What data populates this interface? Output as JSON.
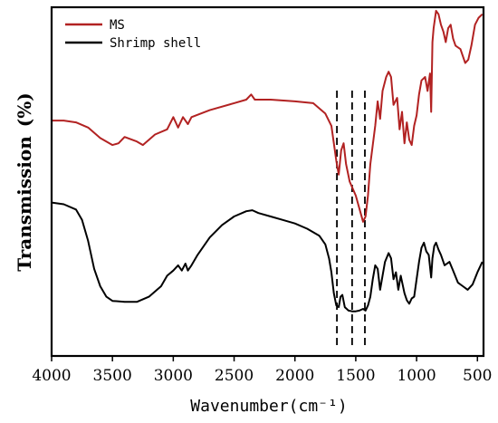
{
  "chart_data": {
    "type": "line",
    "title": "",
    "xlabel": "Wavenumber(cm⁻¹)",
    "ylabel": "Transmission (%)",
    "xlim": [
      4000,
      450
    ],
    "x_reversed": true,
    "xticks": [
      4000,
      3500,
      3000,
      2500,
      2000,
      1500,
      1000,
      500
    ],
    "y_ticks_shown": false,
    "grid": false,
    "legend_position": "top-left",
    "reference_lines_x": [
      1655,
      1530,
      1425
    ],
    "series": [
      {
        "name": "MS",
        "color": "#b22222",
        "points": [
          [
            4000,
            67.5
          ],
          [
            3900,
            67.5
          ],
          [
            3800,
            67.0
          ],
          [
            3700,
            65.5
          ],
          [
            3600,
            62.5
          ],
          [
            3500,
            60.5
          ],
          [
            3450,
            61.0
          ],
          [
            3400,
            62.8
          ],
          [
            3300,
            61.5
          ],
          [
            3250,
            60.5
          ],
          [
            3150,
            63.5
          ],
          [
            3050,
            65.0
          ],
          [
            3000,
            68.5
          ],
          [
            2960,
            65.5
          ],
          [
            2920,
            68.5
          ],
          [
            2880,
            66.5
          ],
          [
            2850,
            68.5
          ],
          [
            2700,
            70.5
          ],
          [
            2500,
            72.5
          ],
          [
            2400,
            73.5
          ],
          [
            2360,
            75.0
          ],
          [
            2330,
            73.5
          ],
          [
            2200,
            73.5
          ],
          [
            2000,
            73.0
          ],
          [
            1850,
            72.5
          ],
          [
            1750,
            69.5
          ],
          [
            1700,
            66.0
          ],
          [
            1660,
            56.0
          ],
          [
            1640,
            52.0
          ],
          [
            1620,
            59.0
          ],
          [
            1600,
            61.0
          ],
          [
            1580,
            55.0
          ],
          [
            1550,
            50.0
          ],
          [
            1500,
            46.0
          ],
          [
            1460,
            41.0
          ],
          [
            1440,
            38.5
          ],
          [
            1420,
            40.0
          ],
          [
            1400,
            46.0
          ],
          [
            1380,
            55.0
          ],
          [
            1340,
            66.0
          ],
          [
            1320,
            73.0
          ],
          [
            1300,
            68.0
          ],
          [
            1280,
            76.0
          ],
          [
            1250,
            80.0
          ],
          [
            1230,
            81.5
          ],
          [
            1210,
            80.0
          ],
          [
            1190,
            72.0
          ],
          [
            1160,
            74.0
          ],
          [
            1140,
            65.0
          ],
          [
            1120,
            70.0
          ],
          [
            1100,
            61.0
          ],
          [
            1080,
            67.0
          ],
          [
            1060,
            62.0
          ],
          [
            1040,
            60.5
          ],
          [
            1020,
            66.0
          ],
          [
            1000,
            69.0
          ],
          [
            980,
            75.0
          ],
          [
            960,
            79.0
          ],
          [
            930,
            80.0
          ],
          [
            910,
            76.0
          ],
          [
            890,
            81.0
          ],
          [
            880,
            70.0
          ],
          [
            870,
            90.0
          ],
          [
            860,
            94.0
          ],
          [
            840,
            99.0
          ],
          [
            820,
            98.0
          ],
          [
            800,
            95.0
          ],
          [
            780,
            93.0
          ],
          [
            760,
            90.0
          ],
          [
            740,
            94.0
          ],
          [
            720,
            95.0
          ],
          [
            700,
            91.0
          ],
          [
            680,
            89.0
          ],
          [
            640,
            88.0
          ],
          [
            600,
            84.0
          ],
          [
            575,
            85.0
          ],
          [
            550,
            89.0
          ],
          [
            520,
            95.0
          ],
          [
            490,
            97.0
          ],
          [
            460,
            98.0
          ]
        ]
      },
      {
        "name": "Shrimp shell",
        "color": "#000000",
        "points": [
          [
            4000,
            44.0
          ],
          [
            3900,
            43.5
          ],
          [
            3800,
            42.0
          ],
          [
            3750,
            39.0
          ],
          [
            3700,
            33.0
          ],
          [
            3650,
            25.0
          ],
          [
            3600,
            20.0
          ],
          [
            3550,
            17.0
          ],
          [
            3500,
            15.8
          ],
          [
            3400,
            15.5
          ],
          [
            3300,
            15.5
          ],
          [
            3200,
            17.0
          ],
          [
            3100,
            20.0
          ],
          [
            3050,
            23.0
          ],
          [
            3000,
            24.5
          ],
          [
            2960,
            26.0
          ],
          [
            2930,
            24.5
          ],
          [
            2900,
            26.5
          ],
          [
            2880,
            24.5
          ],
          [
            2850,
            26.0
          ],
          [
            2800,
            29.0
          ],
          [
            2700,
            34.0
          ],
          [
            2600,
            37.5
          ],
          [
            2500,
            40.0
          ],
          [
            2400,
            41.5
          ],
          [
            2350,
            41.8
          ],
          [
            2300,
            41.0
          ],
          [
            2200,
            40.0
          ],
          [
            2100,
            39.0
          ],
          [
            2000,
            38.0
          ],
          [
            1900,
            36.5
          ],
          [
            1800,
            34.5
          ],
          [
            1750,
            32.0
          ],
          [
            1720,
            28.0
          ],
          [
            1700,
            24.0
          ],
          [
            1680,
            18.0
          ],
          [
            1660,
            14.5
          ],
          [
            1640,
            14.0
          ],
          [
            1625,
            17.0
          ],
          [
            1610,
            17.5
          ],
          [
            1590,
            14.0
          ],
          [
            1560,
            13.0
          ],
          [
            1530,
            12.8
          ],
          [
            1500,
            12.8
          ],
          [
            1470,
            13.0
          ],
          [
            1440,
            13.5
          ],
          [
            1420,
            13.0
          ],
          [
            1400,
            14.5
          ],
          [
            1380,
            17.0
          ],
          [
            1360,
            22.0
          ],
          [
            1340,
            26.0
          ],
          [
            1320,
            25.0
          ],
          [
            1300,
            19.0
          ],
          [
            1280,
            23.0
          ],
          [
            1260,
            27.0
          ],
          [
            1230,
            29.5
          ],
          [
            1210,
            28.0
          ],
          [
            1190,
            22.0
          ],
          [
            1170,
            24.0
          ],
          [
            1150,
            19.0
          ],
          [
            1130,
            23.0
          ],
          [
            1100,
            18.0
          ],
          [
            1080,
            16.0
          ],
          [
            1060,
            15.0
          ],
          [
            1040,
            16.5
          ],
          [
            1020,
            17.0
          ],
          [
            1000,
            22.0
          ],
          [
            980,
            27.0
          ],
          [
            960,
            31.0
          ],
          [
            940,
            32.5
          ],
          [
            920,
            30.0
          ],
          [
            900,
            29.0
          ],
          [
            880,
            22.5
          ],
          [
            870,
            28.0
          ],
          [
            855,
            31.5
          ],
          [
            840,
            32.5
          ],
          [
            820,
            30.5
          ],
          [
            800,
            29.0
          ],
          [
            770,
            26.0
          ],
          [
            730,
            27.0
          ],
          [
            700,
            24.5
          ],
          [
            660,
            21.0
          ],
          [
            620,
            20.0
          ],
          [
            580,
            19.0
          ],
          [
            540,
            20.5
          ],
          [
            500,
            24.0
          ],
          [
            460,
            27.0
          ]
        ]
      }
    ]
  }
}
